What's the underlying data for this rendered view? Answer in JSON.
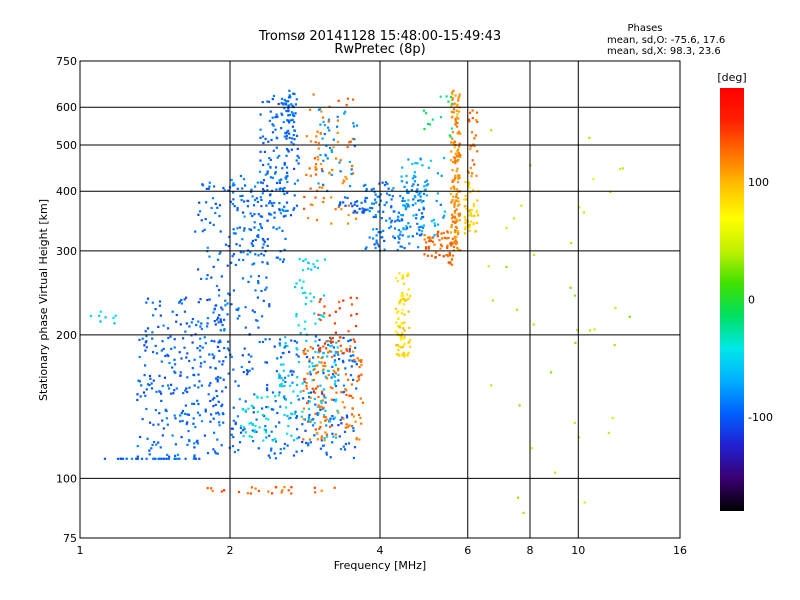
{
  "chart_data": {
    "type": "scatter",
    "title": "Tromsø 20141128 15:48:00-15:49:43",
    "subtitle": "RwPretec (8p)",
    "xlabel": "Frequency [MHz]",
    "ylabel": "Stationary phase Virtual Height [km]",
    "x_scale": "log2",
    "y_scale": "log",
    "xlim": [
      1,
      16
    ],
    "ylim": [
      75,
      750
    ],
    "x_ticks": [
      {
        "v": 1,
        "label": "1",
        "grid": false
      },
      {
        "v": 2,
        "label": "2",
        "grid": true
      },
      {
        "v": 4,
        "label": "4",
        "grid": true
      },
      {
        "v": 6,
        "label": "6",
        "grid": true
      },
      {
        "v": 8,
        "label": "8",
        "grid": true
      },
      {
        "v": 10,
        "label": "10",
        "grid": true
      },
      {
        "v": 16,
        "label": "16",
        "grid": false
      }
    ],
    "y_ticks": [
      {
        "v": 75,
        "label": "75",
        "grid": false
      },
      {
        "v": 100,
        "label": "100",
        "grid": true
      },
      {
        "v": 200,
        "label": "200",
        "grid": true
      },
      {
        "v": 300,
        "label": "300",
        "grid": true
      },
      {
        "v": 400,
        "label": "400",
        "grid": true
      },
      {
        "v": 500,
        "label": "500",
        "grid": true
      },
      {
        "v": 600,
        "label": "600",
        "grid": true
      },
      {
        "v": 750,
        "label": "750",
        "grid": false
      }
    ],
    "phases_title": "Phases",
    "phases_o": "mean, sd,O: -75.6, 17.6",
    "phases_x": "mean, sd,X:  98.3, 23.6",
    "colorbar": {
      "label": "[deg]",
      "min": -180,
      "max": 180,
      "ticks": [
        {
          "v": 100,
          "label": "100"
        },
        {
          "v": 0,
          "label": "0"
        },
        {
          "v": -100,
          "label": "-100"
        }
      ],
      "colors": [
        "#000000",
        "#3a0070",
        "#2020d0",
        "#0060ff",
        "#00b0ff",
        "#00e8e8",
        "#00e060",
        "#40e000",
        "#c0f000",
        "#ffff00",
        "#ffc000",
        "#ff7000",
        "#ff2000",
        "#ff0000"
      ]
    },
    "series": [
      {
        "x": [
          1.05,
          1.9
        ],
        "y": [
          110,
          110
        ],
        "phase": -95,
        "n": 30
      },
      {
        "x": [
          1.3,
          3.6
        ],
        "y": [
          110,
          200
        ],
        "phase": -95,
        "n": 380
      },
      {
        "x": [
          1.35,
          1.95
        ],
        "y": [
          130,
          240
        ],
        "phase": -100,
        "n": 140
      },
      {
        "x": [
          1.7,
          2.4
        ],
        "y": [
          200,
          420
        ],
        "phase": -95,
        "n": 140
      },
      {
        "x": [
          2.0,
          2.6
        ],
        "y": [
          280,
          440
        ],
        "phase": -90,
        "n": 90
      },
      {
        "x": [
          2.3,
          2.75
        ],
        "y": [
          350,
          640
        ],
        "phase": -95,
        "n": 140
      },
      {
        "x": [
          2.55,
          2.7
        ],
        "y": [
          520,
          650
        ],
        "phase": -90,
        "n": 30
      },
      {
        "x": [
          2.5,
          3.3
        ],
        "y": [
          120,
          200
        ],
        "phase": -55,
        "n": 110
      },
      {
        "x": [
          2.7,
          3.1
        ],
        "y": [
          200,
          290
        ],
        "phase": -50,
        "n": 40
      },
      {
        "x": [
          2.1,
          2.6
        ],
        "y": [
          120,
          150
        ],
        "phase": -40,
        "n": 35
      },
      {
        "x": [
          2.8,
          3.7
        ],
        "y": [
          120,
          190
        ],
        "phase": 125,
        "n": 130
      },
      {
        "x": [
          3.0,
          3.6
        ],
        "y": [
          180,
          240
        ],
        "phase": 140,
        "n": 40
      },
      {
        "x": [
          2.8,
          3.6
        ],
        "y": [
          340,
          640
        ],
        "phase": 125,
        "n": 80
      },
      {
        "x": [
          3.3,
          3.8
        ],
        "y": [
          360,
          390
        ],
        "phase": -100,
        "n": 25
      },
      {
        "x": [
          3.0,
          3.6
        ],
        "y": [
          400,
          600
        ],
        "phase": -80,
        "n": 40
      },
      {
        "x": [
          3.7,
          4.9
        ],
        "y": [
          300,
          420
        ],
        "phase": -90,
        "n": 150
      },
      {
        "x": [
          4.4,
          5.4
        ],
        "y": [
          320,
          470
        ],
        "phase": -70,
        "n": 70
      },
      {
        "x": [
          4.3,
          4.6
        ],
        "y": [
          180,
          270
        ],
        "phase": 85,
        "n": 90
      },
      {
        "x": [
          4.9,
          5.6
        ],
        "y": [
          280,
          330
        ],
        "phase": 130,
        "n": 60
      },
      {
        "x": [
          5.55,
          5.8
        ],
        "y": [
          300,
          650
        ],
        "phase": 115,
        "n": 160
      },
      {
        "x": [
          5.9,
          6.3
        ],
        "y": [
          320,
          420
        ],
        "phase": 90,
        "n": 50
      },
      {
        "x": [
          6.0,
          6.3
        ],
        "y": [
          430,
          600
        ],
        "phase": 125,
        "n": 25
      },
      {
        "x": [
          4.9,
          5.6
        ],
        "y": [
          520,
          640
        ],
        "phase": -20,
        "n": 15
      },
      {
        "x": [
          1.8,
          3.3
        ],
        "y": [
          93,
          96
        ],
        "phase": 130,
        "n": 25
      },
      {
        "x": [
          6.5,
          13
        ],
        "y": [
          80,
          600
        ],
        "phase": 40,
        "n": 40
      },
      {
        "x": [
          1.05,
          1.2
        ],
        "y": [
          210,
          225
        ],
        "phase": -55,
        "n": 8
      }
    ]
  }
}
